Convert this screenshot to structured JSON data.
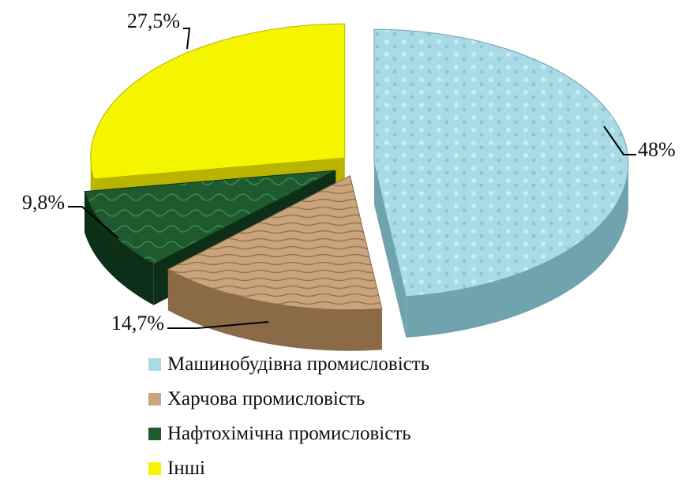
{
  "chart_data": {
    "type": "pie",
    "title": "",
    "series": [
      {
        "name": "Машинобудівна промисловість",
        "value": 48,
        "label": "48%",
        "color": "#a9dbe6",
        "side": "#6fa3ad"
      },
      {
        "name": "Харчова промисловість",
        "value": 14.7,
        "label": "14,7%",
        "color": "#c9a47c",
        "side": "#8b6a47"
      },
      {
        "name": "Нафтохімічна промисловість",
        "value": 9.8,
        "label": "9,8%",
        "color": "#1f5a2e",
        "side": "#0e2f17"
      },
      {
        "name": "Інші",
        "value": 27.5,
        "label": "27,5%",
        "color": "#f5f500",
        "side": "#b8b400"
      }
    ],
    "legend_position": "bottom",
    "style": "3d-exploded"
  }
}
